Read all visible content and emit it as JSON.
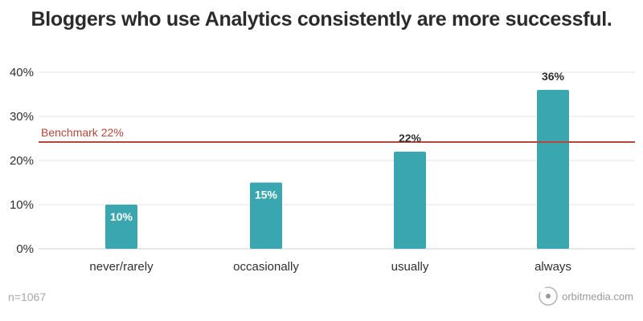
{
  "header": {
    "title": "Bloggers who use Analytics consistently are more successful."
  },
  "footer": {
    "sample_size": "n=1067",
    "brand_text": "orbitmedia.com",
    "brand_icon": "orbit-logo-icon"
  },
  "colors": {
    "bar": "#3aa6b0",
    "benchmark": "#b5473a",
    "grid": "#e6e6e6",
    "axis": "#cccccc",
    "label_dark": "#2f2f2f",
    "label_light": "#ffffff"
  },
  "chart_data": {
    "type": "bar",
    "title": "Bloggers who use Analytics consistently are more successful.",
    "xlabel": "",
    "ylabel": "",
    "ylim": [
      0,
      40
    ],
    "yticks": [
      0,
      10,
      20,
      30,
      40
    ],
    "ytick_labels": [
      "0%",
      "10%",
      "20%",
      "30%",
      "40%"
    ],
    "categories": [
      "never/rarely",
      "occasionally",
      "usually",
      "always"
    ],
    "values": [
      10,
      15,
      22,
      36
    ],
    "data_labels": [
      "10%",
      "15%",
      "22%",
      "36%"
    ],
    "grid": true,
    "benchmark": {
      "value": 22,
      "label": "Benchmark 22%"
    }
  }
}
